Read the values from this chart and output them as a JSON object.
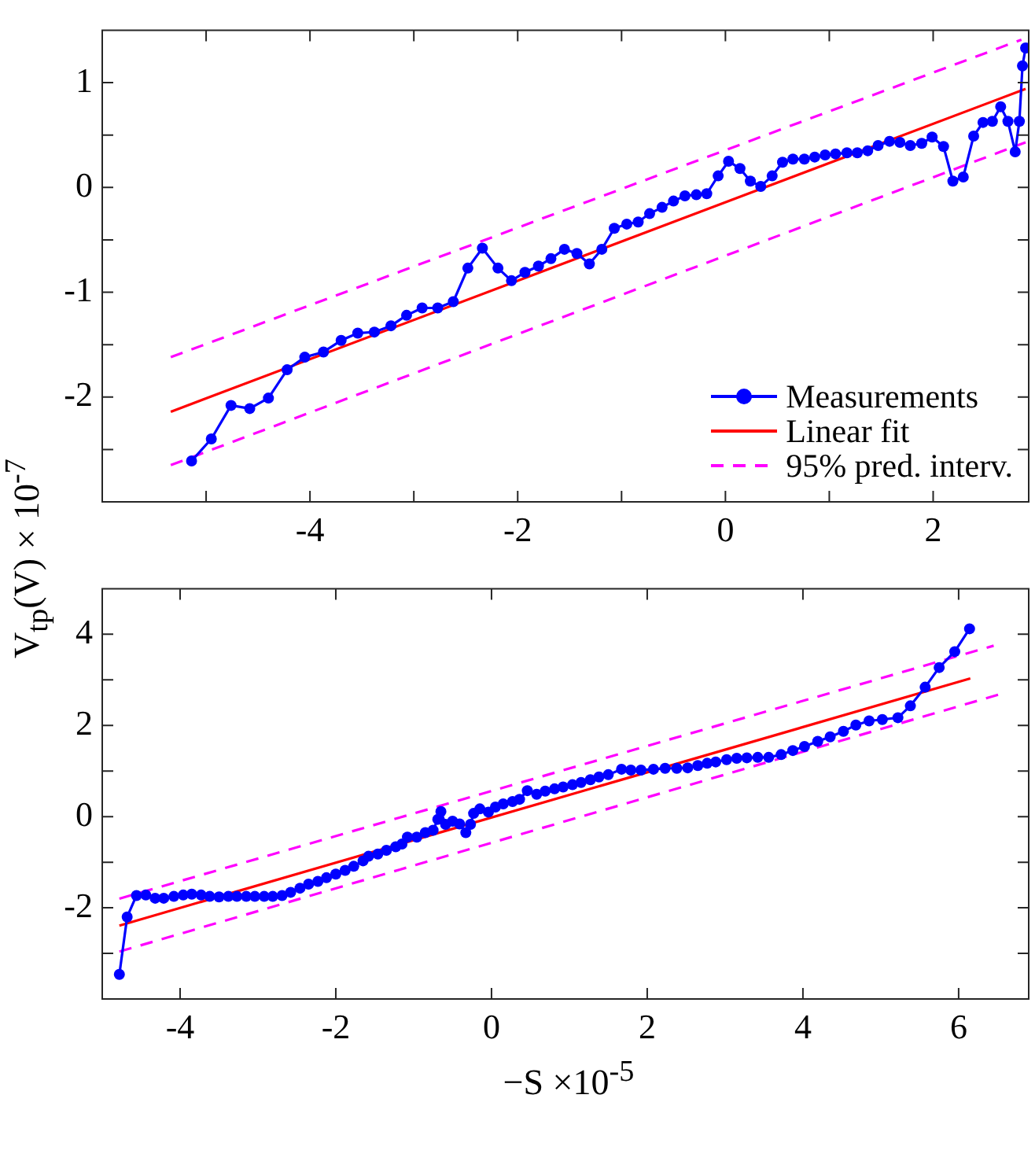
{
  "chart_data": [
    {
      "type": "line",
      "ylabel": "V$_{tp}$(V) × 10$^{-7}$",
      "grid": false,
      "legend": "bottom right",
      "xlim": [
        -6,
        2.92
      ],
      "xticks": [
        {
          "value": -5,
          "label": null
        },
        -4,
        {
          "value": -3,
          "label": null
        },
        -2,
        {
          "value": -1,
          "label": null
        },
        0,
        {
          "value": 1,
          "label": null
        },
        2
      ],
      "ylim": [
        -3,
        1.5
      ],
      "yticks": [
        {
          "value": -2.5,
          "label": null
        },
        -2,
        {
          "value": -1.5,
          "label": null
        },
        -1,
        {
          "value": -0.5,
          "label": null
        },
        0,
        {
          "value": 0.5,
          "label": null
        },
        1
      ],
      "series": [
        {
          "name": "Measurements",
          "type": "line",
          "color": "#0000ff",
          "marker": "circle",
          "line_style": "solid",
          "x": [
            -5.14,
            -4.95,
            -4.76,
            -4.58,
            -4.4,
            -4.22,
            -4.05,
            -3.87,
            -3.7,
            -3.54,
            -3.38,
            -3.22,
            -3.07,
            -2.92,
            -2.77,
            -2.62,
            -2.48,
            -2.34,
            -2.19,
            -2.06,
            -1.93,
            -1.8,
            -1.68,
            -1.55,
            -1.43,
            -1.31,
            -1.19,
            -1.07,
            -0.95,
            -0.84,
            -0.73,
            -0.61,
            -0.5,
            -0.39,
            -0.28,
            -0.18,
            -0.07,
            0.03,
            0.14,
            0.24,
            0.34,
            0.45,
            0.55,
            0.65,
            0.76,
            0.86,
            0.96,
            1.06,
            1.17,
            1.27,
            1.37,
            1.47,
            1.58,
            1.68,
            1.78,
            1.89,
            1.99,
            2.1,
            2.19,
            2.29,
            2.39,
            2.48,
            2.57,
            2.65,
            2.72,
            2.79,
            2.83,
            2.86,
            2.89
          ],
          "values": [
            -2.61,
            -2.4,
            -2.08,
            -2.11,
            -2.01,
            -1.74,
            -1.62,
            -1.57,
            -1.46,
            -1.39,
            -1.38,
            -1.32,
            -1.22,
            -1.15,
            -1.15,
            -1.09,
            -0.77,
            -0.58,
            -0.77,
            -0.89,
            -0.81,
            -0.75,
            -0.68,
            -0.59,
            -0.63,
            -0.73,
            -0.59,
            -0.39,
            -0.35,
            -0.33,
            -0.25,
            -0.19,
            -0.13,
            -0.08,
            -0.07,
            -0.06,
            0.11,
            0.25,
            0.18,
            0.06,
            0.01,
            0.11,
            0.24,
            0.27,
            0.27,
            0.29,
            0.31,
            0.32,
            0.33,
            0.33,
            0.35,
            0.4,
            0.44,
            0.43,
            0.4,
            0.42,
            0.48,
            0.39,
            0.06,
            0.1,
            0.49,
            0.62,
            0.63,
            0.77,
            0.63,
            0.34,
            0.63,
            1.16,
            1.33
          ]
        },
        {
          "name": "Linear fit",
          "type": "line",
          "color": "#ff0000",
          "marker": "none",
          "line_style": "solid",
          "x": [
            -5.34,
            2.89
          ],
          "values": [
            -2.14,
            0.94
          ]
        },
        {
          "name": "95% pred. interv.",
          "type": "line",
          "color": "#ff00ff",
          "marker": "none",
          "line_style": "dashed",
          "x": [
            -5.34,
            2.85
          ],
          "values": [
            -1.62,
            1.41
          ]
        },
        {
          "type": "line",
          "color": "#ff00ff",
          "marker": "none",
          "line_style": "dashed",
          "x": [
            -5.34,
            2.89
          ],
          "values": [
            -2.65,
            0.43
          ]
        }
      ]
    },
    {
      "type": "line",
      "xlabel": "−S ×10$^{-5}$",
      "grid": false,
      "xlim": [
        -5,
        6.9
      ],
      "xticks": [
        -4,
        -2,
        0,
        2,
        4,
        6
      ],
      "ylim": [
        -4,
        5
      ],
      "yticks": [
        {
          "value": -3,
          "label": null
        },
        -2,
        {
          "value": -1,
          "label": null
        },
        0,
        {
          "value": 1,
          "label": null
        },
        2,
        {
          "value": 3,
          "label": null
        },
        4
      ],
      "series": [
        {
          "type": "line",
          "color": "#0000ff",
          "marker": "circle",
          "line_style": "solid",
          "x": [
            -4.78,
            -4.68,
            -4.56,
            -4.44,
            -4.32,
            -4.21,
            -4.08,
            -3.96,
            -3.85,
            -3.73,
            -3.62,
            -3.5,
            -3.38,
            -3.27,
            -3.15,
            -3.04,
            -2.92,
            -2.81,
            -2.69,
            -2.58,
            -2.46,
            -2.35,
            -2.23,
            -2.12,
            -2.0,
            -1.88,
            -1.77,
            -1.65,
            -1.58,
            -1.46,
            -1.35,
            -1.23,
            -1.15,
            -1.08,
            -0.96,
            -0.85,
            -0.75,
            -0.69,
            -0.65,
            -0.59,
            -0.5,
            -0.41,
            -0.33,
            -0.27,
            -0.23,
            -0.15,
            -0.04,
            0.05,
            0.15,
            0.27,
            0.36,
            0.46,
            0.58,
            0.69,
            0.81,
            0.92,
            1.04,
            1.15,
            1.27,
            1.38,
            1.5,
            1.67,
            1.79,
            1.92,
            2.08,
            2.23,
            2.38,
            2.52,
            2.65,
            2.77,
            2.88,
            3.02,
            3.15,
            3.28,
            3.42,
            3.56,
            3.72,
            3.87,
            4.02,
            4.19,
            4.35,
            4.52,
            4.68,
            4.85,
            5.02,
            5.22,
            5.38,
            5.57,
            5.75,
            5.95,
            6.14
          ],
          "values": [
            -3.46,
            -2.2,
            -1.73,
            -1.72,
            -1.79,
            -1.79,
            -1.75,
            -1.72,
            -1.7,
            -1.72,
            -1.75,
            -1.76,
            -1.75,
            -1.75,
            -1.75,
            -1.75,
            -1.75,
            -1.75,
            -1.73,
            -1.66,
            -1.57,
            -1.48,
            -1.42,
            -1.34,
            -1.26,
            -1.18,
            -1.09,
            -0.97,
            -0.87,
            -0.82,
            -0.74,
            -0.66,
            -0.6,
            -0.45,
            -0.45,
            -0.35,
            -0.3,
            -0.06,
            0.11,
            -0.17,
            -0.1,
            -0.16,
            -0.35,
            -0.17,
            0.07,
            0.17,
            0.1,
            0.21,
            0.28,
            0.33,
            0.38,
            0.57,
            0.49,
            0.56,
            0.61,
            0.65,
            0.7,
            0.75,
            0.81,
            0.87,
            0.92,
            1.04,
            1.02,
            1.02,
            1.04,
            1.06,
            1.06,
            1.07,
            1.12,
            1.17,
            1.2,
            1.25,
            1.28,
            1.29,
            1.3,
            1.3,
            1.36,
            1.45,
            1.54,
            1.65,
            1.75,
            1.87,
            2.01,
            2.1,
            2.13,
            2.17,
            2.43,
            2.84,
            3.27,
            3.62,
            4.12
          ]
        },
        {
          "type": "line",
          "color": "#ff0000",
          "marker": "none",
          "line_style": "solid",
          "x": [
            -4.78,
            6.15
          ],
          "values": [
            -2.39,
            3.03
          ]
        },
        {
          "type": "line",
          "color": "#ff00ff",
          "marker": "none",
          "line_style": "dashed",
          "x": [
            -4.78,
            6.45
          ],
          "values": [
            -1.8,
            3.75
          ]
        },
        {
          "type": "line",
          "color": "#ff00ff",
          "marker": "none",
          "line_style": "dashed",
          "x": [
            -4.78,
            6.54
          ],
          "values": [
            -2.96,
            2.69
          ]
        }
      ]
    }
  ]
}
